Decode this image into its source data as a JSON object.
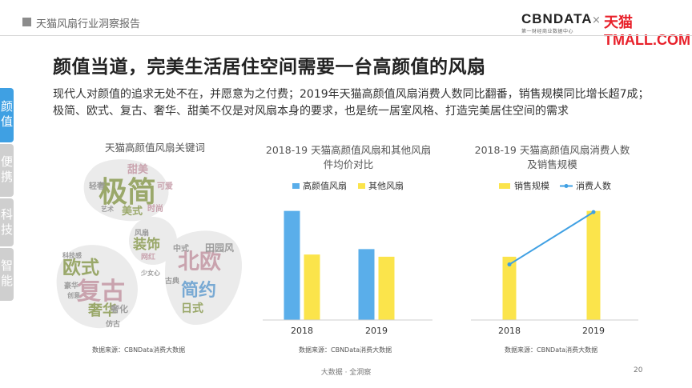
{
  "header": {
    "title": "天猫风扇行业洞察报告",
    "logo_left": "CBNDATA",
    "logo_left_sub": "第一财经商业数据中心",
    "logo_sep": "×",
    "logo_right": "天猫TMALL.COM"
  },
  "headline": "颜值当道，完美生活居住空间需要一台高颜值的风扇",
  "intro": "现代人对颜值的追求无处不在，并愿意为之付费；2019年天猫高颜值风扇消费人数同比翻番，销售规模同比增长超7成；极简、欧式、复古、奢华、甜美不仅是对风扇本身的要求，也是统一居室风格、打造完美居住空间的需求",
  "side_tabs": [
    {
      "label": "颜值"
    },
    {
      "label": "便携"
    },
    {
      "label": "科技"
    },
    {
      "label": "智能"
    }
  ],
  "wordcloud": {
    "title": "天猫高颜值风扇关键词",
    "source": "数据来源：CBNData消费大数据",
    "words": [
      "极简",
      "甜美",
      "可爱",
      "轻奢",
      "美式",
      "时尚",
      "艺术",
      "装饰",
      "风扇",
      "网红",
      "北欧",
      "中式",
      "田园风",
      "简约",
      "日式",
      "古典",
      "欧式",
      "复古",
      "奢华",
      "科技感",
      "豪华",
      "创意",
      "奢化",
      "仿古",
      "少女心"
    ],
    "colors": {
      "green": "#9aa86a",
      "pink": "#c9a3ae",
      "blue": "#78a9d3",
      "gray": "#9c9c9c"
    }
  },
  "chart_data": [
    {
      "type": "bar",
      "title": "2018-19 天猫高颜值风扇和其他风扇件均价对比",
      "categories": [
        "2018",
        "2019"
      ],
      "series": [
        {
          "name": "高颜值风扇",
          "values": [
            100,
            65
          ],
          "color": "#5aaeea"
        },
        {
          "name": "其他风扇",
          "values": [
            60,
            58
          ],
          "color": "#fbe44b"
        }
      ],
      "ylim": [
        0,
        110
      ],
      "grid": false,
      "legend": "top",
      "source": "数据来源：CBNData消费大数据"
    },
    {
      "type": "bar",
      "title": "2018-19 天猫高颜值风扇消费人数及销售规模",
      "categories": [
        "2018",
        "2019"
      ],
      "series": [
        {
          "name": "销售规模",
          "type": "bar",
          "values": [
            58,
            100
          ],
          "color": "#fbe44b"
        },
        {
          "name": "消费人数",
          "type": "line",
          "values": [
            50,
            100
          ],
          "color": "#3fa0e3"
        }
      ],
      "ylim": [
        0,
        110
      ],
      "grid": false,
      "legend": "top",
      "source": "数据来源：CBNData消费大数据"
    }
  ],
  "footer": {
    "text": "大数据 · 全洞察",
    "page": "20"
  }
}
